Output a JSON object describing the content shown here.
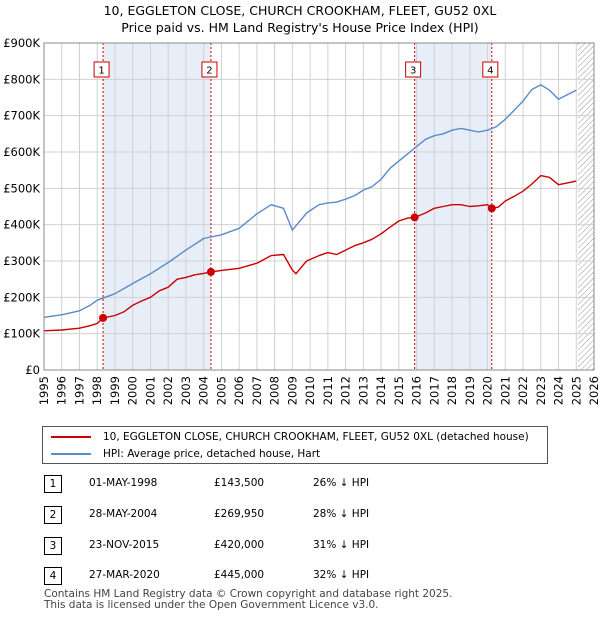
{
  "title_line1": "10, EGGLETON CLOSE, CHURCH CROOKHAM, FLEET, GU52 0XL",
  "title_line2": "Price paid vs. HM Land Registry's House Price Index (HPI)",
  "colors": {
    "property": "#cc0000",
    "hpi": "#5b8ac9",
    "shade": "#e8eef8",
    "grid": "#d0d0d0"
  },
  "chart_data": {
    "type": "line",
    "title": "10, EGGLETON CLOSE, CHURCH CROOKHAM, FLEET, GU52 0XL — Price paid vs. HM Land Registry's House Price Index (HPI)",
    "xlim": [
      1995,
      2026
    ],
    "ylim": [
      0,
      900000
    ],
    "x_ticks": [
      "1995",
      "1996",
      "1997",
      "1998",
      "1999",
      "2000",
      "2001",
      "2002",
      "2003",
      "2004",
      "2005",
      "2006",
      "2007",
      "2008",
      "2009",
      "2010",
      "2011",
      "2012",
      "2013",
      "2014",
      "2015",
      "2016",
      "2017",
      "2018",
      "2019",
      "2020",
      "2021",
      "2022",
      "2023",
      "2024",
      "2025",
      "2026"
    ],
    "y_ticks": [
      {
        "value": 0,
        "label": "£0"
      },
      {
        "value": 100000,
        "label": "£100K"
      },
      {
        "value": 200000,
        "label": "£200K"
      },
      {
        "value": 300000,
        "label": "£300K"
      },
      {
        "value": 400000,
        "label": "£400K"
      },
      {
        "value": 500000,
        "label": "£500K"
      },
      {
        "value": 600000,
        "label": "£600K"
      },
      {
        "value": 700000,
        "label": "£700K"
      },
      {
        "value": 800000,
        "label": "£800K"
      },
      {
        "value": 900000,
        "label": "£900K"
      }
    ],
    "shaded_ranges": [
      [
        1998.33,
        2004.41
      ],
      [
        2015.89,
        2020.24
      ]
    ],
    "hatched_from": 2025.1,
    "series": [
      {
        "name": "10, EGGLETON CLOSE, CHURCH CROOKHAM, FLEET, GU52 0XL (detached house)",
        "color": "#cc0000",
        "x": [
          1995.0,
          1996.0,
          1997.0,
          1997.6,
          1998.0,
          1998.33,
          1999.0,
          1999.5,
          2000.0,
          2000.5,
          2001.0,
          2001.5,
          2002.0,
          2002.5,
          2003.0,
          2003.5,
          2004.0,
          2004.41,
          2005.0,
          2006.0,
          2007.0,
          2007.8,
          2008.5,
          2009.0,
          2009.2,
          2009.8,
          2010.5,
          2011.0,
          2011.5,
          2012.0,
          2012.5,
          2013.0,
          2013.5,
          2014.0,
          2014.5,
          2015.0,
          2015.5,
          2015.89,
          2016.5,
          2017.0,
          2017.5,
          2018.0,
          2018.5,
          2019.0,
          2019.5,
          2020.0,
          2020.24,
          2020.6,
          2021.0,
          2021.5,
          2022.0,
          2022.5,
          2023.0,
          2023.5,
          2024.0,
          2024.5,
          2025.0
        ],
        "y": [
          108000,
          110000,
          115000,
          122000,
          128000,
          143500,
          150000,
          160000,
          178000,
          190000,
          200000,
          218000,
          228000,
          250000,
          255000,
          262000,
          266000,
          269950,
          274000,
          280000,
          294000,
          315000,
          318000,
          275000,
          265000,
          300000,
          315000,
          323000,
          318000,
          330000,
          342000,
          350000,
          360000,
          375000,
          393000,
          410000,
          418000,
          420000,
          432000,
          445000,
          450000,
          455000,
          455000,
          450000,
          452000,
          455000,
          445000,
          448000,
          465000,
          478000,
          492000,
          512000,
          535000,
          530000,
          510000,
          515000,
          520000
        ]
      },
      {
        "name": "HPI: Average price, detached house, Hart",
        "color": "#5b8ac9",
        "x": [
          1995.0,
          1996.0,
          1997.0,
          1997.6,
          1998.0,
          1999.0,
          2000.0,
          2001.0,
          2002.0,
          2003.0,
          2004.0,
          2005.0,
          2006.0,
          2007.0,
          2007.8,
          2008.5,
          2009.0,
          2009.8,
          2010.5,
          2011.0,
          2011.5,
          2012.0,
          2012.5,
          2013.0,
          2013.5,
          2014.0,
          2014.5,
          2015.0,
          2015.5,
          2016.0,
          2016.5,
          2017.0,
          2017.5,
          2018.0,
          2018.5,
          2019.0,
          2019.5,
          2020.0,
          2020.5,
          2021.0,
          2021.5,
          2022.0,
          2022.5,
          2023.0,
          2023.5,
          2024.0,
          2024.5,
          2025.0
        ],
        "y": [
          145000,
          152000,
          163000,
          178000,
          192000,
          210000,
          238000,
          265000,
          296000,
          330000,
          362000,
          372000,
          390000,
          430000,
          455000,
          445000,
          385000,
          432000,
          455000,
          460000,
          462000,
          470000,
          480000,
          495000,
          505000,
          525000,
          555000,
          575000,
          595000,
          615000,
          635000,
          645000,
          650000,
          660000,
          665000,
          660000,
          655000,
          660000,
          670000,
          690000,
          715000,
          740000,
          772000,
          785000,
          770000,
          745000,
          758000,
          770000
        ]
      }
    ],
    "markers": [
      {
        "label": "1",
        "x": 1998.33,
        "y": 143500
      },
      {
        "label": "2",
        "x": 2004.41,
        "y": 269950
      },
      {
        "label": "3",
        "x": 2015.89,
        "y": 420000
      },
      {
        "label": "4",
        "x": 2020.24,
        "y": 445000
      }
    ]
  },
  "legend": {
    "property_label": "10, EGGLETON CLOSE, CHURCH CROOKHAM, FLEET, GU52 0XL (detached house)",
    "hpi_label": "HPI: Average price, detached house, Hart"
  },
  "transactions": [
    {
      "num": "1",
      "date": "01-MAY-1998",
      "price": "£143,500",
      "diff": "26% ↓ HPI"
    },
    {
      "num": "2",
      "date": "28-MAY-2004",
      "price": "£269,950",
      "diff": "28% ↓ HPI"
    },
    {
      "num": "3",
      "date": "23-NOV-2015",
      "price": "£420,000",
      "diff": "31% ↓ HPI"
    },
    {
      "num": "4",
      "date": "27-MAR-2020",
      "price": "£445,000",
      "diff": "32% ↓ HPI"
    }
  ],
  "footer_line1": "Contains HM Land Registry data © Crown copyright and database right 2025.",
  "footer_line2": "This data is licensed under the Open Government Licence v3.0."
}
